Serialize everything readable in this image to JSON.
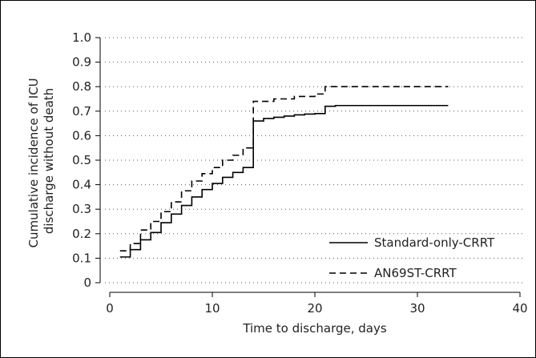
{
  "chart_data": {
    "type": "line",
    "title": "",
    "xlabel": "Time to discharge, days",
    "ylabel_lines": [
      "Cumulative incidence of ICU",
      "discharge without death"
    ],
    "xlim": [
      0,
      40
    ],
    "ylim": [
      0,
      1.0
    ],
    "x_ticks": [
      0,
      10,
      20,
      30,
      40
    ],
    "y_ticks": [
      0,
      0.1,
      0.2,
      0.3,
      0.4,
      0.5,
      0.6,
      0.7,
      0.8,
      0.9,
      1.0
    ],
    "y_tick_labels": [
      "0",
      "0.1",
      "0.2",
      "0.3",
      "0.4",
      "0.5",
      "0.6",
      "0.7",
      "0.8",
      "0.9",
      "1.0"
    ],
    "grid": "horizontal-dotted",
    "legend_placement": "bottom-right",
    "step": true,
    "series": [
      {
        "name": "Standard-only-CRRT",
        "style": "solid",
        "points": [
          [
            1,
            0.105
          ],
          [
            2,
            0.135
          ],
          [
            3,
            0.175
          ],
          [
            4,
            0.205
          ],
          [
            5,
            0.245
          ],
          [
            6,
            0.28
          ],
          [
            7,
            0.315
          ],
          [
            8,
            0.35
          ],
          [
            9,
            0.38
          ],
          [
            10,
            0.405
          ],
          [
            11,
            0.43
          ],
          [
            12,
            0.45
          ],
          [
            13,
            0.47
          ],
          [
            14,
            0.66
          ],
          [
            15,
            0.67
          ],
          [
            16,
            0.675
          ],
          [
            17,
            0.68
          ],
          [
            18,
            0.685
          ],
          [
            19,
            0.688
          ],
          [
            20,
            0.69
          ],
          [
            21,
            0.72
          ],
          [
            22,
            0.723
          ],
          [
            33,
            0.723
          ]
        ]
      },
      {
        "name": "AN69ST-CRRT",
        "style": "dashed",
        "points": [
          [
            1,
            0.13
          ],
          [
            2,
            0.16
          ],
          [
            3,
            0.215
          ],
          [
            4,
            0.25
          ],
          [
            5,
            0.29
          ],
          [
            6,
            0.33
          ],
          [
            7,
            0.375
          ],
          [
            8,
            0.415
          ],
          [
            9,
            0.445
          ],
          [
            10,
            0.47
          ],
          [
            11,
            0.5
          ],
          [
            12,
            0.52
          ],
          [
            13,
            0.55
          ],
          [
            14,
            0.74
          ],
          [
            16,
            0.75
          ],
          [
            18,
            0.76
          ],
          [
            20,
            0.77
          ],
          [
            21,
            0.8
          ],
          [
            33,
            0.8
          ]
        ]
      }
    ]
  }
}
